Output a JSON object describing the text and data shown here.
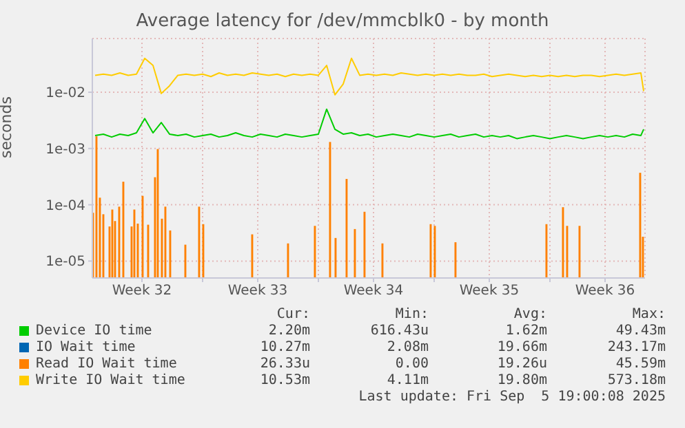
{
  "chart_data": {
    "type": "line",
    "title": "Average latency for /dev/mmcblk0 - by month",
    "ylabel": "seconds",
    "log": true,
    "grid": true,
    "legend": "bottom",
    "marker": "none",
    "xlim": [
      "2025-08-04T08:00",
      "2025-09-06T18:00"
    ],
    "xticks": [
      {
        "value": "2025-08-07T08:00",
        "label": "Week 32"
      },
      {
        "value": "2025-08-11T00:00",
        "label": null
      },
      {
        "value": "2025-08-14T08:00",
        "label": "Week 33"
      },
      {
        "value": "2025-08-18T00:00",
        "label": null
      },
      {
        "value": "2025-08-21T08:00",
        "label": "Week 34"
      },
      {
        "value": "2025-08-25T00:00",
        "label": null
      },
      {
        "value": "2025-08-28T08:00",
        "label": "Week 35"
      },
      {
        "value": "2025-09-01T00:00",
        "label": null
      },
      {
        "value": "2025-09-04T08:00",
        "label": "Week 36"
      }
    ],
    "ylim": [
      5e-06,
      0.09
    ],
    "yticks": [
      {
        "value": 1e-05,
        "label": "1e-05"
      },
      {
        "value": 0.0001,
        "label": "1e-04"
      },
      {
        "value": 0.001,
        "label": "1e-03"
      },
      {
        "value": 0.01,
        "label": "1e-02"
      }
    ],
    "x": [
      "2025-08-04T12:00",
      "2025-08-05T00:00",
      "2025-08-05T12:00",
      "2025-08-06T00:00",
      "2025-08-06T12:00",
      "2025-08-07T00:00",
      "2025-08-07T12:00",
      "2025-08-08T00:00",
      "2025-08-08T12:00",
      "2025-08-09T00:00",
      "2025-08-09T12:00",
      "2025-08-10T00:00",
      "2025-08-10T12:00",
      "2025-08-11T00:00",
      "2025-08-11T12:00",
      "2025-08-12T00:00",
      "2025-08-12T12:00",
      "2025-08-13T00:00",
      "2025-08-13T12:00",
      "2025-08-14T00:00",
      "2025-08-14T12:00",
      "2025-08-15T00:00",
      "2025-08-15T12:00",
      "2025-08-16T00:00",
      "2025-08-16T12:00",
      "2025-08-17T00:00",
      "2025-08-17T12:00",
      "2025-08-18T00:00",
      "2025-08-18T12:00",
      "2025-08-19T00:00",
      "2025-08-19T12:00",
      "2025-08-20T00:00",
      "2025-08-20T12:00",
      "2025-08-21T00:00",
      "2025-08-21T12:00",
      "2025-08-22T00:00",
      "2025-08-22T12:00",
      "2025-08-23T00:00",
      "2025-08-23T12:00",
      "2025-08-24T00:00",
      "2025-08-24T12:00",
      "2025-08-25T00:00",
      "2025-08-25T12:00",
      "2025-08-26T00:00",
      "2025-08-26T12:00",
      "2025-08-27T00:00",
      "2025-08-27T12:00",
      "2025-08-28T00:00",
      "2025-08-28T12:00",
      "2025-08-29T00:00",
      "2025-08-29T12:00",
      "2025-08-30T00:00",
      "2025-08-30T12:00",
      "2025-08-31T00:00",
      "2025-08-31T12:00",
      "2025-09-01T00:00",
      "2025-09-01T12:00",
      "2025-09-02T00:00",
      "2025-09-02T12:00",
      "2025-09-03T00:00",
      "2025-09-03T12:00",
      "2025-09-04T00:00",
      "2025-09-04T12:00",
      "2025-09-05T00:00",
      "2025-09-05T12:00",
      "2025-09-06T00:00",
      "2025-09-06T12:00",
      "2025-09-06T16:00"
    ],
    "series": [
      {
        "name": "Device IO time",
        "color": "#00cc00",
        "values": [
          0.0017,
          0.0018,
          0.0016,
          0.0018,
          0.0017,
          0.0019,
          0.0034,
          0.0019,
          0.0029,
          0.0018,
          0.0017,
          0.0018,
          0.0016,
          0.0017,
          0.0018,
          0.0016,
          0.0017,
          0.0019,
          0.0017,
          0.0016,
          0.0018,
          0.0017,
          0.0016,
          0.0018,
          0.0017,
          0.0016,
          0.0017,
          0.0018,
          0.005,
          0.0022,
          0.0018,
          0.0019,
          0.0017,
          0.0018,
          0.0016,
          0.0017,
          0.0018,
          0.0017,
          0.0016,
          0.0018,
          0.0017,
          0.0016,
          0.0017,
          0.0018,
          0.0016,
          0.0017,
          0.0018,
          0.0016,
          0.0017,
          0.0016,
          0.0017,
          0.0015,
          0.0016,
          0.0017,
          0.0016,
          0.0015,
          0.0016,
          0.0017,
          0.0016,
          0.0015,
          0.0016,
          0.0017,
          0.0016,
          0.0017,
          0.0016,
          0.0018,
          0.0017,
          0.0022
        ]
      },
      {
        "name": "IO Wait time",
        "color": "#0066b3",
        "values": [
          null,
          null,
          null,
          null,
          null,
          null,
          null,
          null,
          null,
          null,
          null,
          null,
          null,
          null,
          null,
          null,
          null,
          null,
          null,
          null,
          null,
          null,
          null,
          null,
          null,
          null,
          null,
          null,
          null,
          null,
          null,
          null,
          null,
          null,
          null,
          null,
          null,
          null,
          null,
          null,
          null,
          null,
          null,
          null,
          null,
          null,
          null,
          null,
          null,
          null,
          null,
          null,
          null,
          null,
          null,
          null,
          null,
          null,
          null,
          null,
          null,
          null,
          null,
          null,
          null,
          null,
          null,
          null
        ]
      },
      {
        "name": "Read IO Wait time",
        "color": "#ff8000",
        "type": "bar",
        "x": [
          "2025-08-04T09:00",
          "2025-08-04T14:00",
          "2025-08-04T19:00",
          "2025-08-05T00:00",
          "2025-08-05T09:00",
          "2025-08-05T13:00",
          "2025-08-05T17:00",
          "2025-08-05T23:00",
          "2025-08-06T05:00",
          "2025-08-06T17:00",
          "2025-08-06T21:00",
          "2025-08-07T02:00",
          "2025-08-07T09:00",
          "2025-08-07T17:00",
          "2025-08-08T03:00",
          "2025-08-08T07:00",
          "2025-08-08T13:00",
          "2025-08-08T18:00",
          "2025-08-09T01:00",
          "2025-08-09T23:00",
          "2025-08-10T19:00",
          "2025-08-11T01:00",
          "2025-08-14T00:00",
          "2025-08-16T04:00",
          "2025-08-17T19:00",
          "2025-08-18T17:00",
          "2025-08-19T01:00",
          "2025-08-19T17:00",
          "2025-08-20T05:00",
          "2025-08-20T19:00",
          "2025-08-21T21:00",
          "2025-08-24T19:00",
          "2025-08-25T01:00",
          "2025-08-26T07:00",
          "2025-08-31T19:00",
          "2025-09-01T19:00",
          "2025-09-02T01:00",
          "2025-09-02T19:00",
          "2025-09-06T11:00",
          "2025-09-06T15:00"
        ],
        "values": [
          7e-05,
          0.0016,
          0.00013,
          6.6e-05,
          4e-05,
          8e-05,
          5e-05,
          9e-05,
          0.00025,
          4e-05,
          8e-05,
          4.5e-05,
          0.00014,
          4.3e-05,
          0.0003,
          0.00095,
          5.5e-05,
          9e-05,
          3.4e-05,
          1.9e-05,
          9e-05,
          4.4e-05,
          2.9e-05,
          2e-05,
          4.1e-05,
          0.00127,
          2.5e-05,
          0.00028,
          3.6e-05,
          7.3e-05,
          2e-05,
          4.4e-05,
          4.1e-05,
          2.1e-05,
          4.4e-05,
          8.8e-05,
          4.1e-05,
          4.1e-05,
          0.00036,
          2.63e-05
        ]
      },
      {
        "name": "Write IO Wait time",
        "color": "#ffcc00",
        "values": [
          0.02,
          0.021,
          0.02,
          0.022,
          0.02,
          0.021,
          0.04,
          0.03,
          0.0095,
          0.013,
          0.02,
          0.021,
          0.02,
          0.021,
          0.019,
          0.022,
          0.02,
          0.021,
          0.02,
          0.022,
          0.021,
          0.02,
          0.021,
          0.019,
          0.021,
          0.02,
          0.021,
          0.02,
          0.03,
          0.009,
          0.014,
          0.04,
          0.02,
          0.021,
          0.02,
          0.021,
          0.02,
          0.022,
          0.021,
          0.02,
          0.021,
          0.02,
          0.021,
          0.02,
          0.021,
          0.02,
          0.02,
          0.021,
          0.019,
          0.02,
          0.021,
          0.02,
          0.019,
          0.02,
          0.019,
          0.02,
          0.019,
          0.02,
          0.019,
          0.02,
          0.02,
          0.019,
          0.02,
          0.021,
          0.02,
          0.021,
          0.022,
          0.0105
        ]
      }
    ],
    "annotations": [
      "Cur:",
      "Min:",
      "Avg:",
      "Max:",
      "2.20m",
      "616.43u",
      "1.62m",
      "49.43m",
      "10.27m",
      "2.08m",
      "19.66m",
      "243.17m",
      "26.33u",
      "0.00",
      "19.26u",
      "45.59m",
      "10.53m",
      "4.11m",
      "19.80m",
      "573.18m",
      "Last update: Fri Sep  5 19:00:08 2025"
    ]
  }
}
